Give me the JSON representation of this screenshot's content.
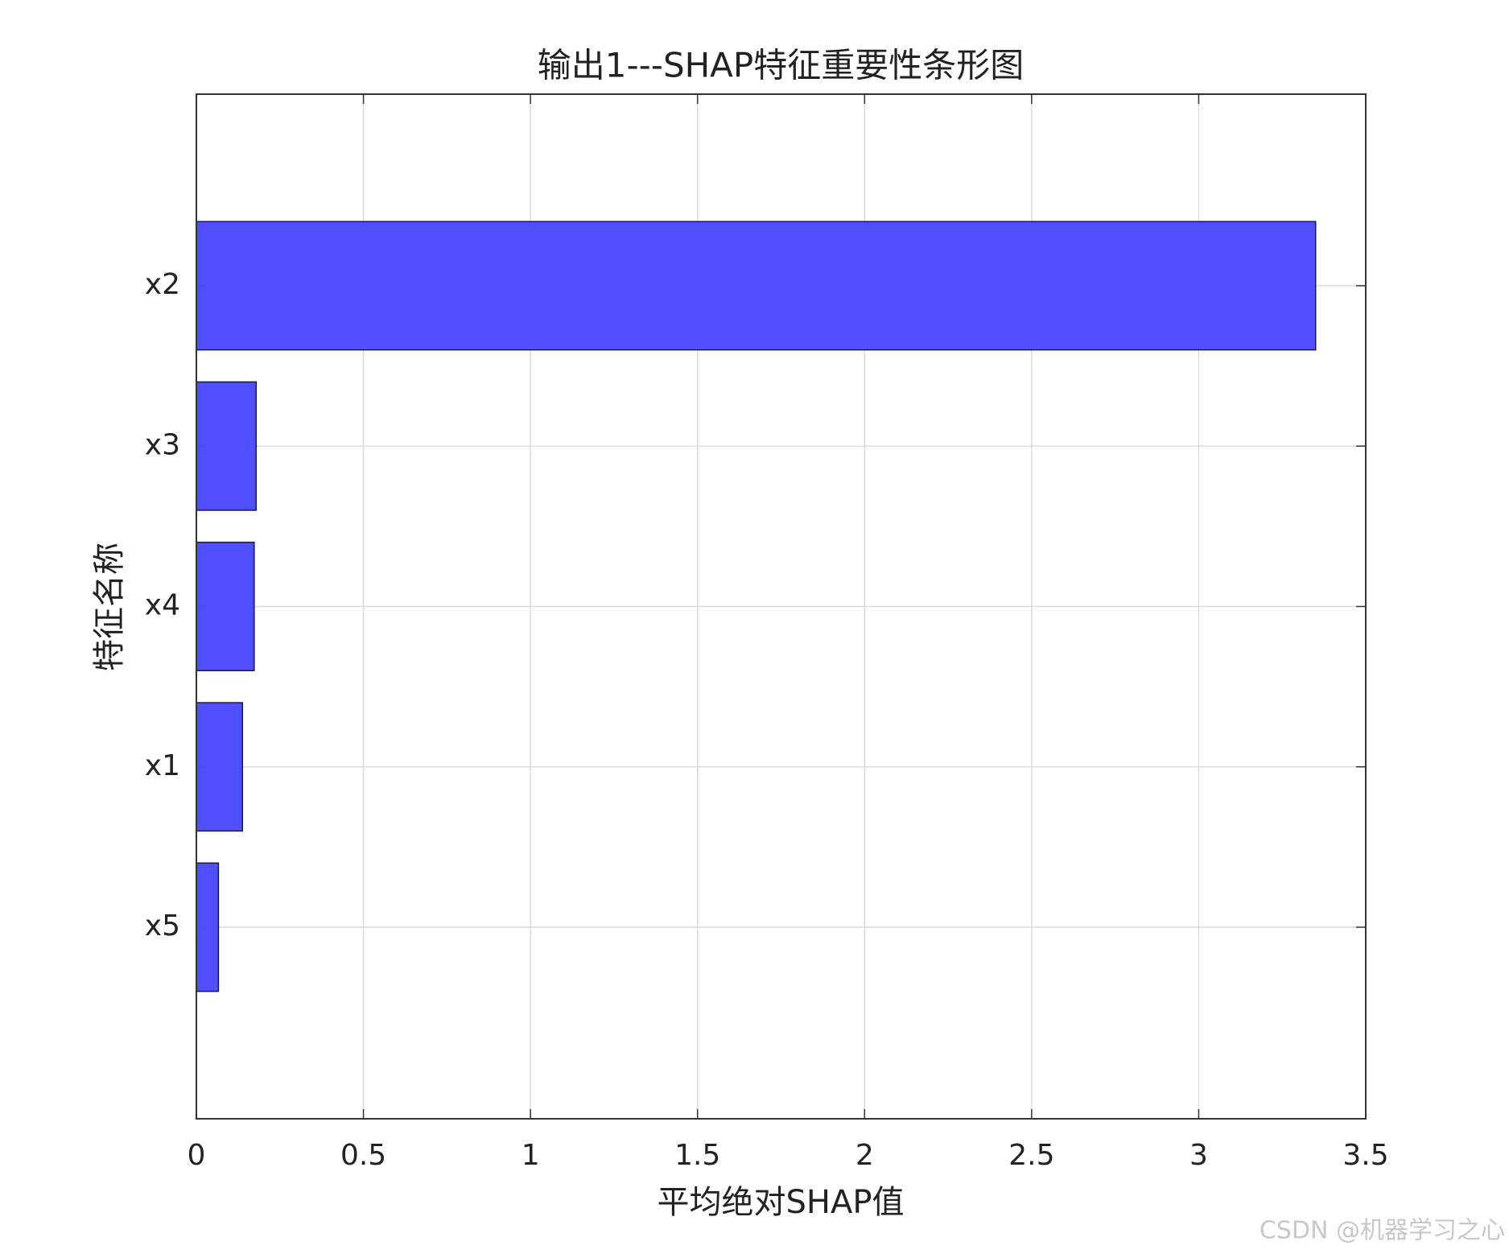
{
  "chart_data": {
    "type": "barh",
    "title": "输出1---SHAP特征重要性条形图",
    "x_label": "平均绝对SHAP值",
    "y_label": "特征名称",
    "categories": [
      "x2",
      "x3",
      "x4",
      "x1",
      "x5"
    ],
    "values": [
      3.35,
      0.179,
      0.173,
      0.138,
      0.066
    ],
    "color": "#4b4bff",
    "xlim": [
      0,
      3.5
    ],
    "xticks": [
      0,
      0.5,
      1,
      1.5,
      2,
      2.5,
      3,
      3.5
    ],
    "grid": true
  },
  "watermark": "CSDN @机器学习之心"
}
